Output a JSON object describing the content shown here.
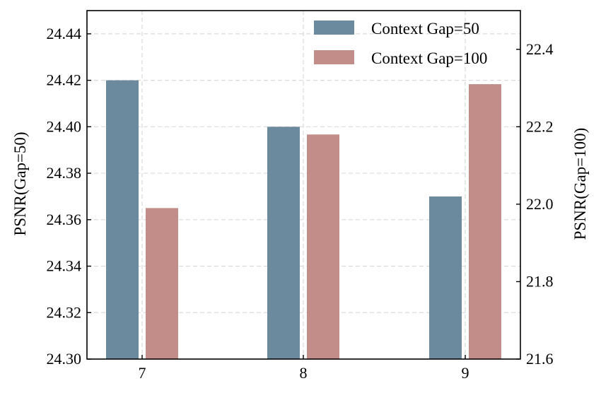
{
  "chart_data": {
    "type": "bar",
    "categories": [
      "7",
      "8",
      "9"
    ],
    "series": [
      {
        "name": "Context Gap=50",
        "axis": "left",
        "values": [
          24.42,
          24.4,
          24.37
        ],
        "color": "#6b8a9e"
      },
      {
        "name": "Context Gap=100",
        "axis": "right",
        "values": [
          21.99,
          22.18,
          22.31
        ],
        "color": "#c28d89"
      }
    ],
    "ylabel": "PSNR(Gap=50)",
    "ylabel_right": "PSNR(Gap=100)",
    "ylim": [
      24.3,
      24.45
    ],
    "ylim_right": [
      21.6,
      22.5
    ],
    "yticks": [
      "24.30",
      "24.32",
      "24.34",
      "24.36",
      "24.38",
      "24.40",
      "24.42",
      "24.44"
    ],
    "yticks_right": [
      "21.6",
      "21.8",
      "22.0",
      "22.2",
      "22.4"
    ],
    "grid": true,
    "legend_position": "top-right"
  }
}
